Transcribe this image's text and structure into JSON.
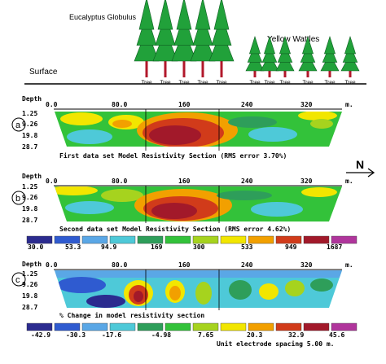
{
  "header": {
    "label_eucalyptus": "Eucalyptus Globulus",
    "label_wattles": "Yellow Wattles",
    "label_surface": "Surface",
    "tree_label": "Tree",
    "north_label": "N"
  },
  "sections": [
    {
      "marker": "a",
      "depth_label": "Depth",
      "x_ticks": [
        "0.0",
        "80.0",
        "160",
        "240",
        "320"
      ],
      "x_unit": "m.",
      "depth_ticks": [
        "1.25",
        "9.26",
        "19.8",
        "28.7"
      ],
      "caption": "First data set Model Resistivity Section (RMS error 3.70%)"
    },
    {
      "marker": "b",
      "depth_label": "Depth",
      "x_ticks": [
        "0.0",
        "80.0",
        "160",
        "240",
        "320"
      ],
      "x_unit": "m.",
      "depth_ticks": [
        "1.25",
        "9.26",
        "19.8",
        "28.7"
      ],
      "caption": "Second data set Model Resistivity Section (RMS error 4.62%)"
    },
    {
      "marker": "c",
      "depth_label": "Depth",
      "x_ticks": [
        "0.0",
        "80.0",
        "160",
        "240",
        "320"
      ],
      "x_unit": "m.",
      "depth_ticks": [
        "1.25",
        "9.26",
        "19.8",
        "28.7"
      ],
      "caption": "% Change in model resistivity section"
    }
  ],
  "resistivity_scale": {
    "colors": [
      "#2b2b8f",
      "#2f5bd0",
      "#5aa7e6",
      "#4ec9d8",
      "#2e9e5a",
      "#33c23a",
      "#a6d31e",
      "#f2e600",
      "#f2a000",
      "#d13b1a",
      "#a2192a",
      "#b0359c"
    ],
    "values": [
      "30.0",
      "53.3",
      "94.9",
      "169",
      "300",
      "533",
      "949",
      "1687"
    ]
  },
  "change_scale": {
    "colors": [
      "#2b2b8f",
      "#2f5bd0",
      "#5aa7e6",
      "#4ec9d8",
      "#2e9e5a",
      "#33c23a",
      "#a6d31e",
      "#f2e600",
      "#f2a000",
      "#d13b1a",
      "#a2192a",
      "#b0359c"
    ],
    "values": [
      "-42.9",
      "-30.3",
      "-17.6",
      "-4.98",
      "7.65",
      "20.3",
      "32.9",
      "45.6"
    ]
  },
  "footer_note": "Unit electrode spacing 5.00 m."
}
